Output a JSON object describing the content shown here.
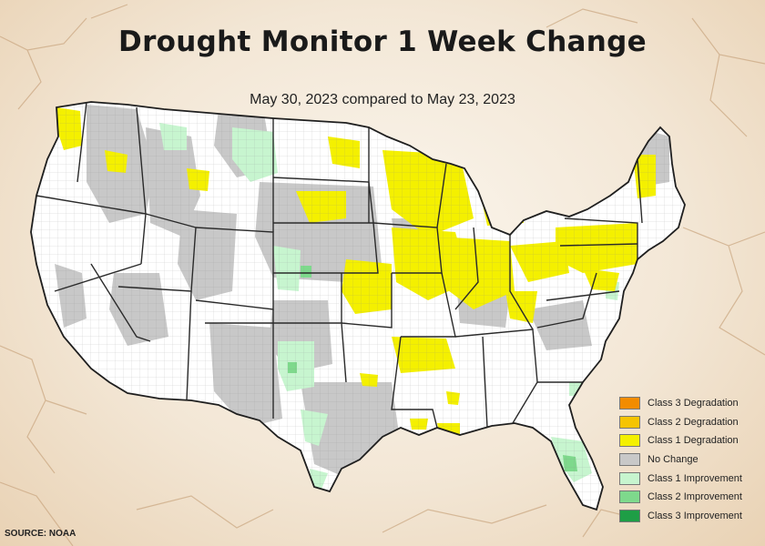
{
  "title": "Drought Monitor 1 Week Change",
  "subtitle": "May 30, 2023 compared to May 23, 2023",
  "source": "SOURCE: NOAA",
  "colors": {
    "background": "#f3e7d6",
    "map_base": "#ffffff",
    "state_border": "#2a2a2a",
    "county_line": "#8a8a8a"
  },
  "legend": [
    {
      "label": "Class 3 Degradation",
      "color": "#f28c00"
    },
    {
      "label": "Class 2 Degradation",
      "color": "#f6c400"
    },
    {
      "label": "Class 1 Degradation",
      "color": "#f4f000"
    },
    {
      "label": "No Change",
      "color": "#c8c8c8"
    },
    {
      "label": "Class 1 Improvement",
      "color": "#c7f5cf"
    },
    {
      "label": "Class 2 Improvement",
      "color": "#7ed98c"
    },
    {
      "label": "Class 3 Improvement",
      "color": "#1e9e46"
    }
  ]
}
